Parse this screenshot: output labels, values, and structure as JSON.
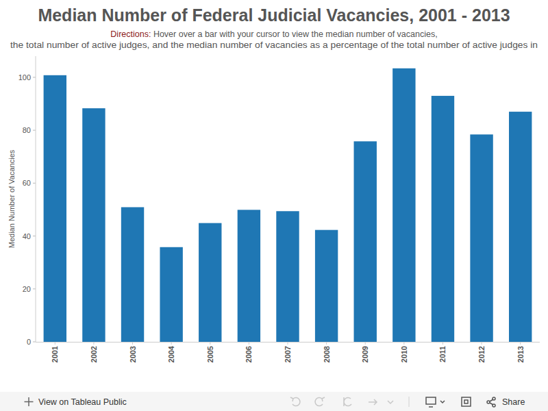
{
  "chart_data": {
    "type": "bar",
    "title": "Median Number of Federal Judicial Vacancies, 2001 - 2013",
    "subtitle": [
      "Directions:",
      "Hover over a bar with your cursor to view the median number of vacancies,",
      "the total number of active judges, and the median number of vacancies as a percentage of the total number of active judges in"
    ],
    "y_label": "Median Number of Vacancies",
    "categories": [
      "2001",
      "2002",
      "2003",
      "2004",
      "2005",
      "2006",
      "2007",
      "2008",
      "2009",
      "2010",
      "2011",
      "2012",
      "2013"
    ],
    "values": [
      100.8,
      88.3,
      50.9,
      35.8,
      44.9,
      49.9,
      49.4,
      42.3,
      75.8,
      103.4,
      93,
      78.4,
      87
    ],
    "color": "#1f77b4",
    "ylim": [
      0,
      108
    ],
    "yticks": [
      0,
      20,
      40,
      60,
      80,
      100
    ],
    "grid": false,
    "annotations": [
      "View on Tableau Public",
      "Share"
    ]
  }
}
